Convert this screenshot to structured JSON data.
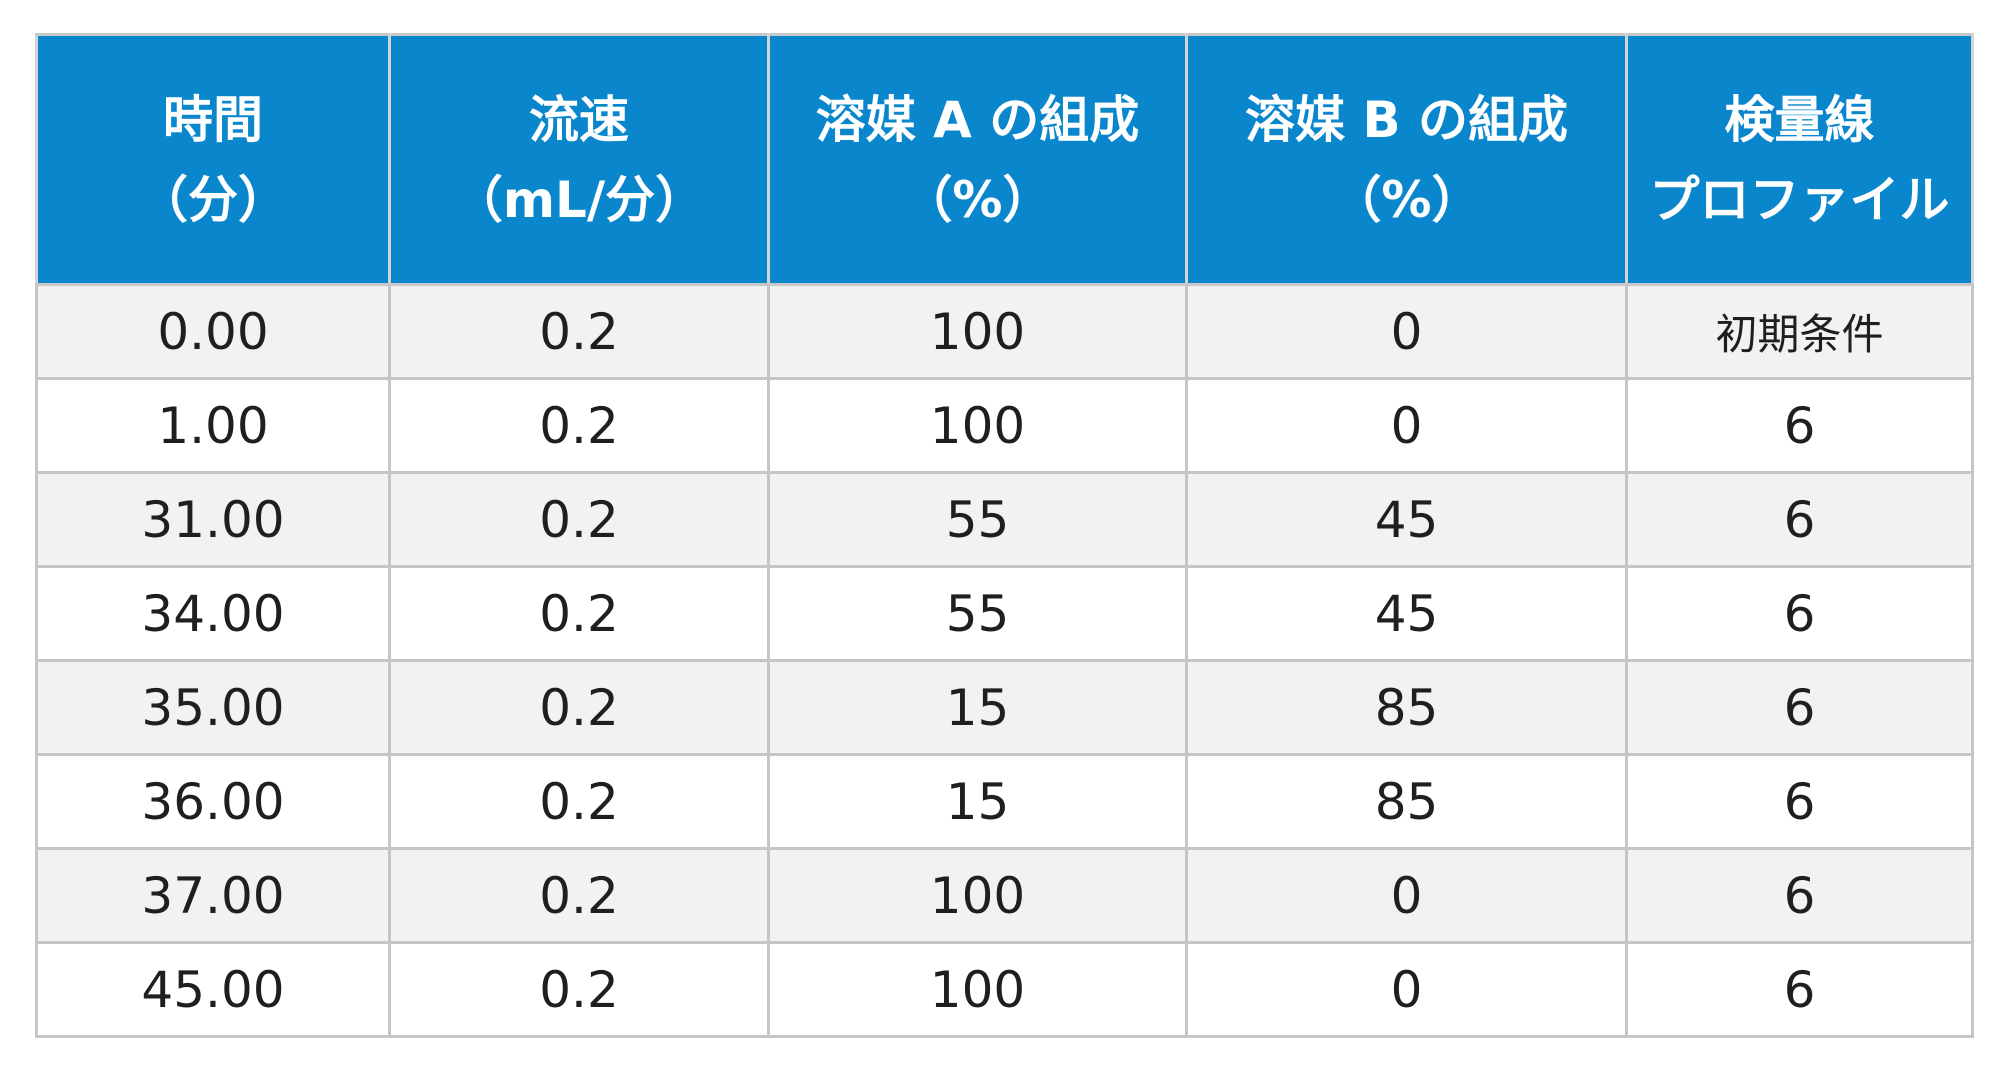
{
  "table": {
    "headers": [
      {
        "line1": "時間",
        "line2": "（分）"
      },
      {
        "line1": "流速",
        "line2": "（mL/分）"
      },
      {
        "line1": "溶媒 A の組成",
        "line2": "（%）"
      },
      {
        "line1": "溶媒 B の組成",
        "line2": "（%）"
      },
      {
        "line1": "検量線",
        "line2": "プロファイル"
      }
    ],
    "rows": [
      [
        "0.00",
        "0.2",
        "100",
        "0",
        "初期条件"
      ],
      [
        "1.00",
        "0.2",
        "100",
        "0",
        "6"
      ],
      [
        "31.00",
        "0.2",
        "55",
        "45",
        "6"
      ],
      [
        "34.00",
        "0.2",
        "55",
        "45",
        "6"
      ],
      [
        "35.00",
        "0.2",
        "15",
        "85",
        "6"
      ],
      [
        "36.00",
        "0.2",
        "15",
        "85",
        "6"
      ],
      [
        "37.00",
        "0.2",
        "100",
        "0",
        "6"
      ],
      [
        "45.00",
        "0.2",
        "100",
        "0",
        "6"
      ]
    ]
  },
  "colors": {
    "header_background": "#0a87cc",
    "header_text": "#ffffff",
    "stripe_row": "#f2f2f4",
    "plain_row": "#ffffff",
    "grid": "#c6c6c6"
  }
}
